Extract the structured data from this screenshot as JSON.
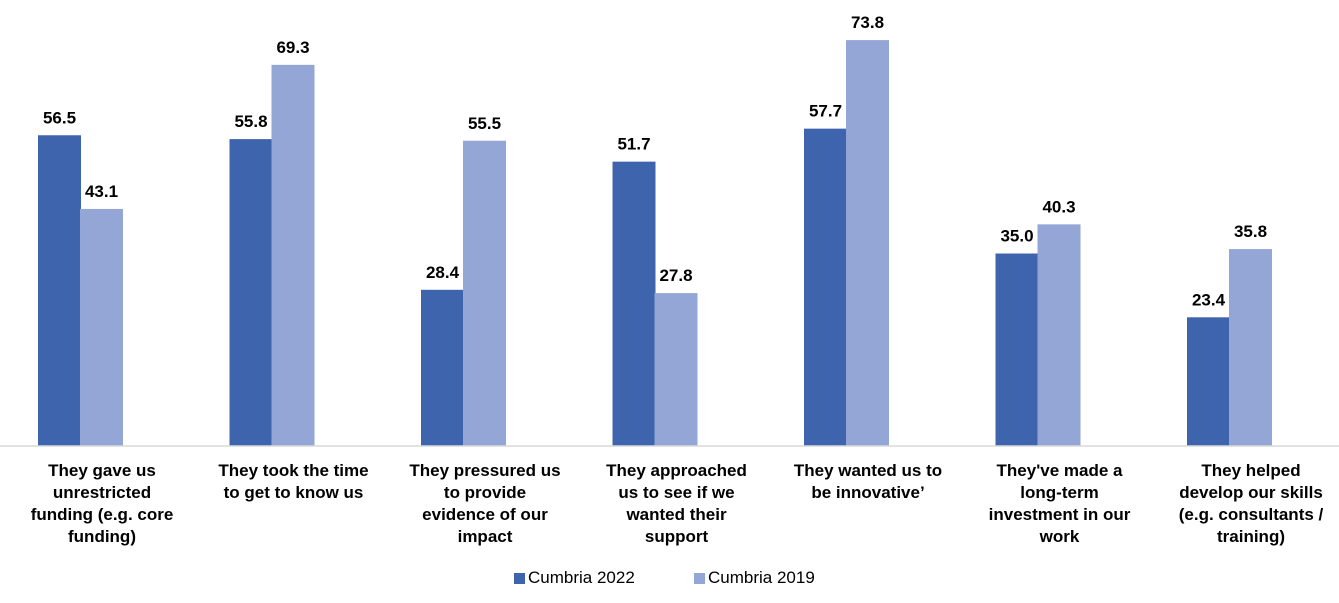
{
  "chart_data": {
    "type": "bar",
    "title": "",
    "xlabel": "",
    "ylabel": "",
    "ylim": [
      0,
      80
    ],
    "grid": false,
    "legend_position": "bottom",
    "categories": [
      [
        "They gave us",
        "unrestricted",
        "funding (e.g. core",
        "funding)"
      ],
      [
        "They took the time",
        "to get to know us"
      ],
      [
        "They pressured us",
        "to provide",
        "evidence of our",
        "impact"
      ],
      [
        "They approached",
        "us to see if we",
        "wanted their",
        "support"
      ],
      [
        "They wanted us to",
        "be innovative’"
      ],
      [
        "They've made a",
        "long-term",
        "investment in our",
        "work"
      ],
      [
        "They helped",
        "develop our skills",
        "(e.g. consultants /",
        "training)"
      ]
    ],
    "series": [
      {
        "name": "Cumbria 2022",
        "color": "#3F64AE",
        "values": [
          56.5,
          55.8,
          28.4,
          51.7,
          57.7,
          35.0,
          23.4
        ],
        "labels": [
          "56.5",
          "55.8",
          "28.4",
          "51.7",
          "57.7",
          "35.0",
          "23.4"
        ]
      },
      {
        "name": "Cumbria 2019",
        "color": "#93A6D6",
        "values": [
          43.1,
          69.3,
          55.5,
          27.8,
          73.8,
          40.3,
          35.8
        ],
        "labels": [
          "43.1",
          "69.3",
          "55.5",
          "27.8",
          "73.8",
          "40.3",
          "35.8"
        ]
      }
    ]
  }
}
